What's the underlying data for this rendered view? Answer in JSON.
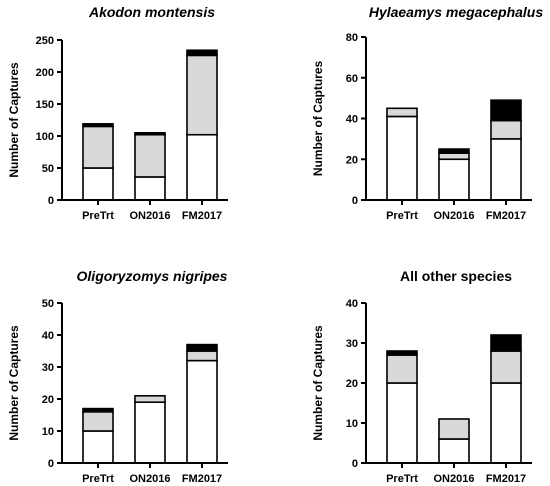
{
  "chart_data": [
    {
      "type": "bar",
      "stacked": true,
      "title": "Akodon montensis",
      "title_italic": true,
      "ylabel": "Number of Captures",
      "categories": [
        "PreTrt",
        "ON2016",
        "FM2017"
      ],
      "series": [
        {
          "color": "#ffffff",
          "values": [
            50,
            36,
            102
          ]
        },
        {
          "color": "#d8d8d8",
          "values": [
            65,
            66,
            124
          ]
        },
        {
          "color": "#000000",
          "values": [
            4,
            3,
            8
          ]
        }
      ],
      "ylim": [
        0,
        250
      ],
      "yticks": [
        0,
        50,
        100,
        150,
        200,
        250
      ]
    },
    {
      "type": "bar",
      "stacked": true,
      "title": "Hylaeamys megacephalus",
      "title_italic": true,
      "ylabel": "Number of Captures",
      "categories": [
        "PreTrt",
        "ON2016",
        "FM2017"
      ],
      "series": [
        {
          "color": "#ffffff",
          "values": [
            41,
            20,
            30
          ]
        },
        {
          "color": "#d8d8d8",
          "values": [
            4,
            3,
            9
          ]
        },
        {
          "color": "#000000",
          "values": [
            0,
            2,
            10
          ]
        }
      ],
      "ylim": [
        0,
        80
      ],
      "yticks": [
        0,
        20,
        40,
        60,
        80
      ]
    },
    {
      "type": "bar",
      "stacked": true,
      "title": "Oligoryzomys nigripes",
      "title_italic": true,
      "ylabel": "Number of Captures",
      "categories": [
        "PreTrt",
        "ON2016",
        "FM2017"
      ],
      "series": [
        {
          "color": "#ffffff",
          "values": [
            10,
            19,
            32
          ]
        },
        {
          "color": "#d8d8d8",
          "values": [
            6,
            2,
            3
          ]
        },
        {
          "color": "#000000",
          "values": [
            1,
            0,
            2
          ]
        }
      ],
      "ylim": [
        0,
        50
      ],
      "yticks": [
        0,
        10,
        20,
        30,
        40,
        50
      ]
    },
    {
      "type": "bar",
      "stacked": true,
      "title": "All other species",
      "title_italic": false,
      "ylabel": "Number of Captures",
      "categories": [
        "PreTrt",
        "ON2016",
        "FM2017"
      ],
      "series": [
        {
          "color": "#ffffff",
          "values": [
            20,
            6,
            20
          ]
        },
        {
          "color": "#d8d8d8",
          "values": [
            7,
            5,
            8
          ]
        },
        {
          "color": "#000000",
          "values": [
            1,
            0,
            4
          ]
        }
      ],
      "ylim": [
        0,
        40
      ],
      "yticks": [
        0,
        10,
        20,
        30,
        40
      ]
    }
  ]
}
